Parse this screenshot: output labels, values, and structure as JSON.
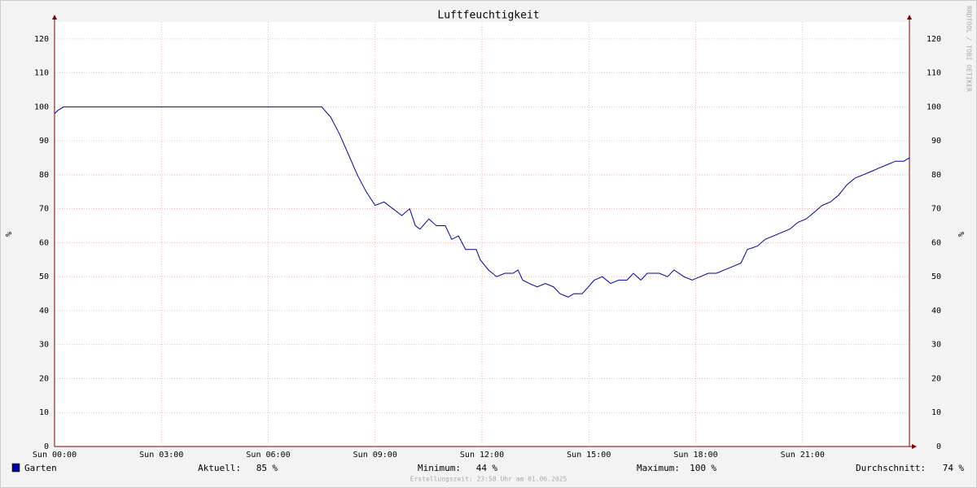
{
  "chart_data": {
    "type": "line",
    "title": "Luftfeuchtigkeit",
    "ylabel": "%",
    "side_text": "RRDTOOL / TOBI OETIKER",
    "footer": "Erstellungszeit: 23:58 Uhr am 01.06.2025",
    "xlim": [
      0,
      24
    ],
    "xticks": [
      {
        "value": 0,
        "label": "Sun 00:00"
      },
      {
        "value": 3,
        "label": "Sun 03:00"
      },
      {
        "value": 6,
        "label": "Sun 06:00"
      },
      {
        "value": 9,
        "label": "Sun 09:00"
      },
      {
        "value": 12,
        "label": "Sun 12:00"
      },
      {
        "value": 15,
        "label": "Sun 15:00"
      },
      {
        "value": 18,
        "label": "Sun 18:00"
      },
      {
        "value": 21,
        "label": "Sun 21:00"
      }
    ],
    "ylim": [
      0,
      125
    ],
    "yticks": [
      0,
      10,
      20,
      30,
      40,
      50,
      60,
      70,
      80,
      90,
      100,
      110,
      120
    ],
    "grid": true,
    "x": [
      0,
      0.1,
      0.25,
      7.5,
      7.75,
      8.0,
      8.25,
      8.5,
      8.75,
      9.0,
      9.25,
      9.5,
      9.75,
      9.97,
      10.13,
      10.26,
      10.51,
      10.72,
      10.97,
      11.15,
      11.34,
      11.54,
      11.84,
      11.95,
      12.18,
      12.41,
      12.64,
      12.87,
      13.01,
      13.14,
      13.33,
      13.55,
      13.78,
      14.01,
      14.19,
      14.42,
      14.58,
      14.81,
      14.99,
      15.15,
      15.38,
      15.61,
      15.84,
      16.07,
      16.25,
      16.46,
      16.64,
      16.98,
      17.21,
      17.39,
      17.67,
      17.9,
      18.13,
      18.35,
      18.58,
      18.81,
      19.04,
      19.27,
      19.45,
      19.73,
      19.95,
      20.18,
      20.41,
      20.64,
      20.87,
      21.1,
      21.33,
      21.55,
      21.78,
      22.01,
      22.24,
      22.47,
      22.7,
      22.93,
      23.15,
      23.38,
      23.61,
      23.84,
      24
    ],
    "series": [
      {
        "name": "Garten",
        "color": "#000099",
        "values": [
          98,
          99,
          100,
          100,
          97,
          92,
          86,
          80,
          75,
          71,
          72,
          70,
          68,
          70,
          65,
          64,
          67,
          65,
          65,
          61,
          62,
          58,
          58,
          55,
          52,
          50,
          51,
          51,
          52,
          49,
          48,
          47,
          48,
          47,
          45,
          44,
          45,
          45,
          47,
          49,
          50,
          48,
          49,
          49,
          51,
          49,
          51,
          51,
          50,
          52,
          50,
          49,
          50,
          51,
          51,
          52,
          53,
          54,
          58,
          59,
          61,
          62,
          63,
          64,
          66,
          67,
          69,
          71,
          72,
          74,
          77,
          79,
          80,
          81,
          82,
          83,
          84,
          84,
          85
        ]
      }
    ],
    "stats": [
      {
        "label": "Aktuell:",
        "value": 85,
        "unit": "%"
      },
      {
        "label": "Minimum:",
        "value": 44,
        "unit": "%"
      },
      {
        "label": "Maximum:",
        "value": 100,
        "unit": "%"
      },
      {
        "label": "Durchschnitt:",
        "value": 74,
        "unit": "%"
      }
    ]
  }
}
